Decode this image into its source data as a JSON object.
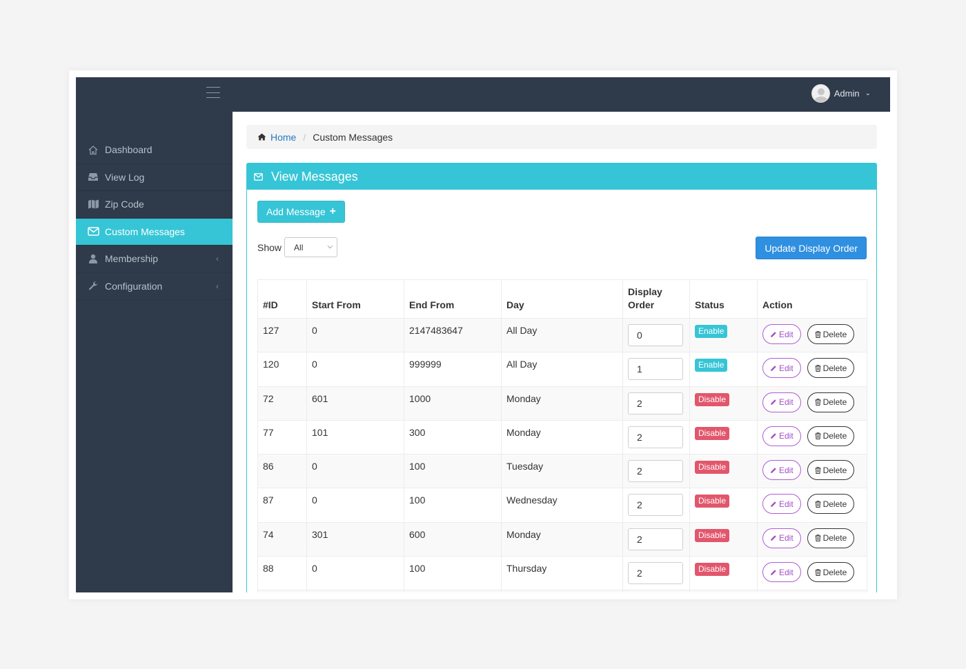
{
  "header": {
    "user_name": "Admin"
  },
  "sidebar": {
    "items": [
      {
        "label": "Dashboard",
        "icon": "home-icon"
      },
      {
        "label": "View Log",
        "icon": "inbox-icon"
      },
      {
        "label": "Zip Code",
        "icon": "map-icon"
      },
      {
        "label": "Custom Messages",
        "icon": "envelope-icon",
        "active": true
      },
      {
        "label": "Membership",
        "icon": "user-icon",
        "expandable": true
      },
      {
        "label": "Configuration",
        "icon": "wrench-icon",
        "expandable": true
      }
    ]
  },
  "breadcrumb": {
    "home": "Home",
    "current": "Custom Messages"
  },
  "panel": {
    "title": "View Messages",
    "add_button": "Add Message",
    "show_label": "Show",
    "show_value": "All",
    "update_button": "Update Display Order"
  },
  "table": {
    "headers": {
      "id": "#ID",
      "start": "Start From",
      "end": "End From",
      "day": "Day",
      "order_line1": "Display",
      "order_line2": "Order",
      "status": "Status",
      "action": "Action"
    },
    "edit_label": "Edit",
    "delete_label": "Delete",
    "rows": [
      {
        "id": "127",
        "start": "0",
        "end": "2147483647",
        "day": "All Day",
        "order": "0",
        "status": "Enable"
      },
      {
        "id": "120",
        "start": "0",
        "end": "999999",
        "day": "All Day",
        "order": "1",
        "status": "Enable"
      },
      {
        "id": "72",
        "start": "601",
        "end": "1000",
        "day": "Monday",
        "order": "2",
        "status": "Disable"
      },
      {
        "id": "77",
        "start": "101",
        "end": "300",
        "day": "Monday",
        "order": "2",
        "status": "Disable"
      },
      {
        "id": "86",
        "start": "0",
        "end": "100",
        "day": "Tuesday",
        "order": "2",
        "status": "Disable"
      },
      {
        "id": "87",
        "start": "0",
        "end": "100",
        "day": "Wednesday",
        "order": "2",
        "status": "Disable"
      },
      {
        "id": "74",
        "start": "301",
        "end": "600",
        "day": "Monday",
        "order": "2",
        "status": "Disable"
      },
      {
        "id": "88",
        "start": "0",
        "end": "100",
        "day": "Thursday",
        "order": "2",
        "status": "Disable"
      },
      {
        "id": "",
        "start": "",
        "end": "",
        "day": "",
        "order": "",
        "status": ""
      }
    ]
  },
  "colors": {
    "sidebar_bg": "#2f3a4a",
    "accent": "#36c5d6",
    "primary_button": "#2f8fe0",
    "disable_badge": "#e2566b",
    "edit_purple": "#a24dc9",
    "link": "#2479c2"
  }
}
